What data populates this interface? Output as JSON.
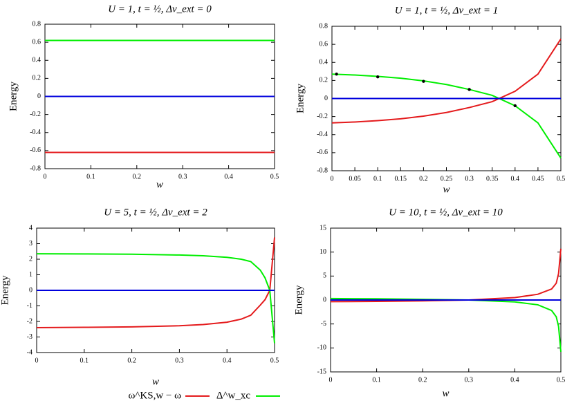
{
  "chart_data": [
    {
      "type": "line",
      "title": "U = 1, t = ½, Δv_ext = 0",
      "xlabel": "w",
      "ylabel": "Energy",
      "x": [
        0,
        0.5
      ],
      "series": [
        {
          "color": "#e41a1c",
          "values": [
            -0.62,
            -0.62
          ]
        },
        {
          "color": "#00ee00",
          "values": [
            0.62,
            0.62
          ]
        },
        {
          "color": "#0000dd",
          "values": [
            0,
            0
          ]
        }
      ],
      "xlim": [
        0,
        0.5
      ],
      "xticks": [
        0,
        0.1,
        0.2,
        0.3,
        0.4,
        0.5
      ],
      "ylim": [
        -0.8,
        0.8
      ],
      "yticks": [
        -0.8,
        -0.6,
        -0.4,
        -0.2,
        0,
        0.2,
        0.4,
        0.6,
        0.8
      ]
    },
    {
      "type": "line",
      "title": "U = 1, t = ½, Δv_ext = 1",
      "xlabel": "w",
      "ylabel": "Energy",
      "x": [
        0,
        0.05,
        0.1,
        0.15,
        0.2,
        0.25,
        0.3,
        0.35,
        0.4,
        0.45,
        0.5
      ],
      "series": [
        {
          "color": "#e41a1c",
          "values": [
            -0.27,
            -0.26,
            -0.245,
            -0.225,
            -0.195,
            -0.155,
            -0.1,
            -0.035,
            0.08,
            0.27,
            0.66
          ]
        },
        {
          "color": "#00ee00",
          "values": [
            0.27,
            0.26,
            0.245,
            0.225,
            0.195,
            0.155,
            0.1,
            0.035,
            -0.08,
            -0.27,
            -0.66
          ]
        },
        {
          "color": "#0000dd",
          "values": [
            0,
            0,
            0,
            0,
            0,
            0,
            0,
            0,
            0,
            0,
            0
          ]
        },
        {
          "color": "#000000",
          "style": "points",
          "x": [
            0.01,
            0.1,
            0.2,
            0.3,
            0.4
          ],
          "values": [
            0.27,
            0.24,
            0.19,
            0.1,
            -0.08
          ]
        }
      ],
      "xlim": [
        0,
        0.5
      ],
      "xticks": [
        0,
        0.05,
        0.1,
        0.15,
        0.2,
        0.25,
        0.3,
        0.35,
        0.4,
        0.45,
        0.5
      ],
      "ylim": [
        -0.8,
        0.8
      ],
      "yticks": [
        -0.8,
        -0.6,
        -0.4,
        -0.2,
        0,
        0.2,
        0.4,
        0.6,
        0.8
      ]
    },
    {
      "type": "line",
      "title": "U = 5, t = ½, Δv_ext = 2",
      "xlabel": "w",
      "ylabel": "Energy",
      "x": [
        0,
        0.1,
        0.2,
        0.3,
        0.35,
        0.4,
        0.43,
        0.45,
        0.47,
        0.48,
        0.49,
        0.5
      ],
      "series": [
        {
          "name": "ω^KS,w − ω",
          "color": "#e41a1c",
          "values": [
            -2.4,
            -2.38,
            -2.35,
            -2.28,
            -2.2,
            -2.05,
            -1.85,
            -1.6,
            -0.95,
            -0.6,
            0,
            3.4
          ]
        },
        {
          "name": "Δ^w_xc",
          "color": "#00ee00",
          "values": [
            2.35,
            2.34,
            2.32,
            2.27,
            2.22,
            2.12,
            2.0,
            1.85,
            1.3,
            0.8,
            0,
            -3.4
          ]
        },
        {
          "color": "#0000dd",
          "values": [
            0,
            0,
            0,
            0,
            0,
            0,
            0,
            0,
            0,
            0,
            0,
            0
          ]
        }
      ],
      "xlim": [
        0,
        0.5
      ],
      "xticks": [
        0,
        0.1,
        0.2,
        0.3,
        0.4,
        0.5
      ],
      "ylim": [
        -4,
        4
      ],
      "yticks": [
        -4,
        -3,
        -2,
        -1,
        0,
        1,
        2,
        3,
        4
      ]
    },
    {
      "type": "line",
      "title": "U = 10, t = ½, Δv_ext = 10",
      "xlabel": "w",
      "ylabel": "Energy",
      "x": [
        0,
        0.1,
        0.2,
        0.3,
        0.4,
        0.45,
        0.48,
        0.49,
        0.495,
        0.5
      ],
      "series": [
        {
          "color": "#e41a1c",
          "values": [
            -0.35,
            -0.28,
            -0.18,
            0,
            0.5,
            1.2,
            2.3,
            3.5,
            5.5,
            10.7
          ]
        },
        {
          "color": "#00ee00",
          "values": [
            0.3,
            0.25,
            0.15,
            0,
            -0.4,
            -1.0,
            -2.2,
            -3.5,
            -5.5,
            -10.8
          ]
        },
        {
          "color": "#0000dd",
          "values": [
            0,
            0,
            0,
            0,
            0,
            0,
            0,
            0,
            0,
            0
          ]
        }
      ],
      "xlim": [
        0,
        0.5
      ],
      "xticks": [
        0,
        0.1,
        0.2,
        0.3,
        0.4,
        0.5
      ],
      "ylim": [
        -15,
        15
      ],
      "yticks": [
        -15,
        -10,
        -5,
        0,
        5,
        10,
        15
      ]
    }
  ]
}
